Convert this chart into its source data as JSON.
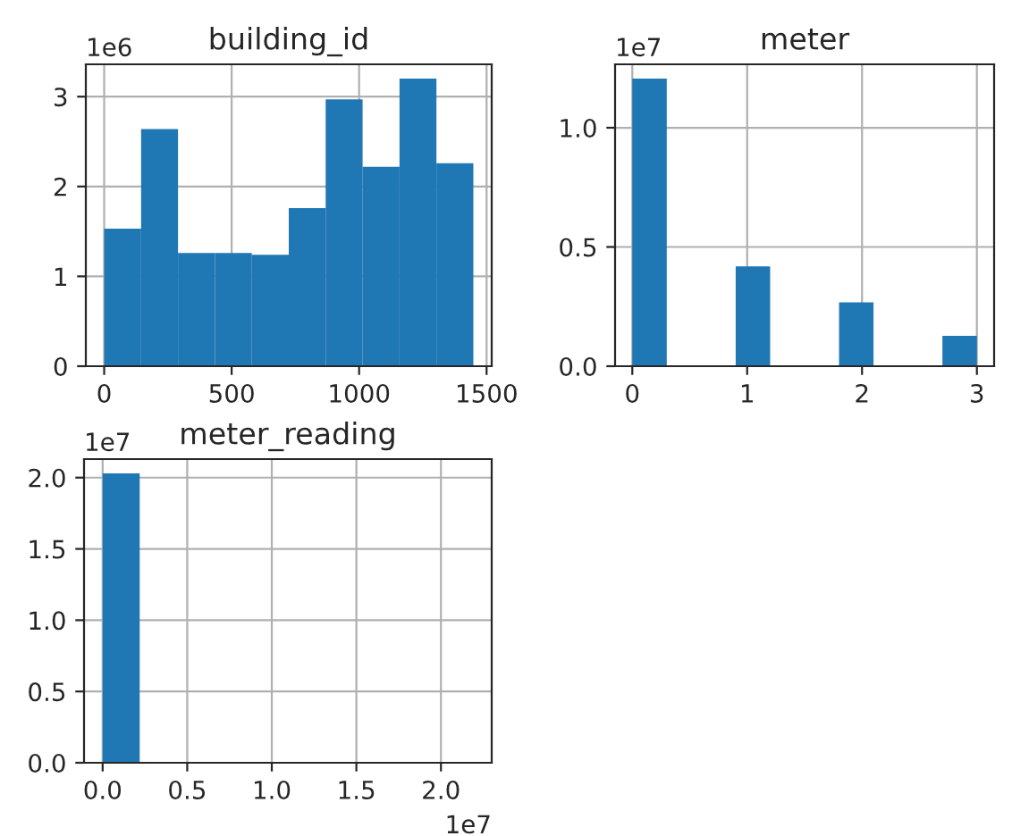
{
  "chart_data": [
    {
      "type": "histogram",
      "title": "building_id",
      "color": "#1f77b4",
      "grid": true,
      "bins": [
        0,
        144.8,
        289.6,
        434.4,
        579.2,
        724,
        868.8,
        1013.6,
        1158.4,
        1303.2,
        1448
      ],
      "values": [
        1.53,
        2.64,
        1.26,
        1.26,
        1.24,
        1.76,
        2.97,
        2.22,
        3.2,
        2.26
      ],
      "xlim": [
        -72,
        1520
      ],
      "xticks": [
        0,
        500,
        1000,
        1500
      ],
      "ylim": [
        0,
        3.36
      ],
      "yticks": [
        0,
        1,
        2,
        3
      ],
      "annotations": [
        "1e6"
      ]
    },
    {
      "type": "histogram",
      "title": "meter",
      "color": "#1f77b4",
      "grid": true,
      "bins": [
        0,
        0.3,
        0.6,
        0.9,
        1.2,
        1.5,
        1.8,
        2.1,
        2.4,
        2.7,
        3
      ],
      "values": [
        1.206,
        0,
        0,
        0.419,
        0,
        0,
        0.268,
        0,
        0,
        0.127
      ],
      "xlim": [
        -0.15,
        3.15
      ],
      "xticks": [
        0,
        1,
        2,
        3
      ],
      "ylim": [
        0,
        1.266
      ],
      "yticks": [
        {
          "value": 0,
          "label": "0.0"
        },
        {
          "value": 0.5,
          "label": "0.5"
        },
        {
          "value": 1,
          "label": "1.0"
        }
      ],
      "annotations": [
        "1e7"
      ]
    },
    {
      "type": "histogram",
      "title": "meter_reading",
      "color": "#1f77b4",
      "grid": true,
      "bins": [
        0,
        0.219,
        0.438,
        0.657,
        0.876,
        1.095,
        1.314,
        1.533,
        1.752,
        1.971,
        2.19
      ],
      "values": [
        2.03,
        0,
        0,
        0,
        0,
        0,
        0,
        0,
        0,
        0
      ],
      "xlim": [
        -0.11,
        2.3
      ],
      "xticks": [
        {
          "value": 0,
          "label": "0.0"
        },
        {
          "value": 0.5,
          "label": "0.5"
        },
        {
          "value": 1,
          "label": "1.0"
        },
        {
          "value": 1.5,
          "label": "1.5"
        },
        {
          "value": 2,
          "label": "2.0"
        }
      ],
      "ylim": [
        0,
        2.13
      ],
      "yticks": [
        {
          "value": 0,
          "label": "0.0"
        },
        {
          "value": 0.5,
          "label": "0.5"
        },
        {
          "value": 1,
          "label": "1.0"
        },
        {
          "value": 1.5,
          "label": "1.5"
        },
        {
          "value": 2,
          "label": "2.0"
        }
      ],
      "annotations": [
        "1e7",
        "1e7"
      ]
    }
  ]
}
